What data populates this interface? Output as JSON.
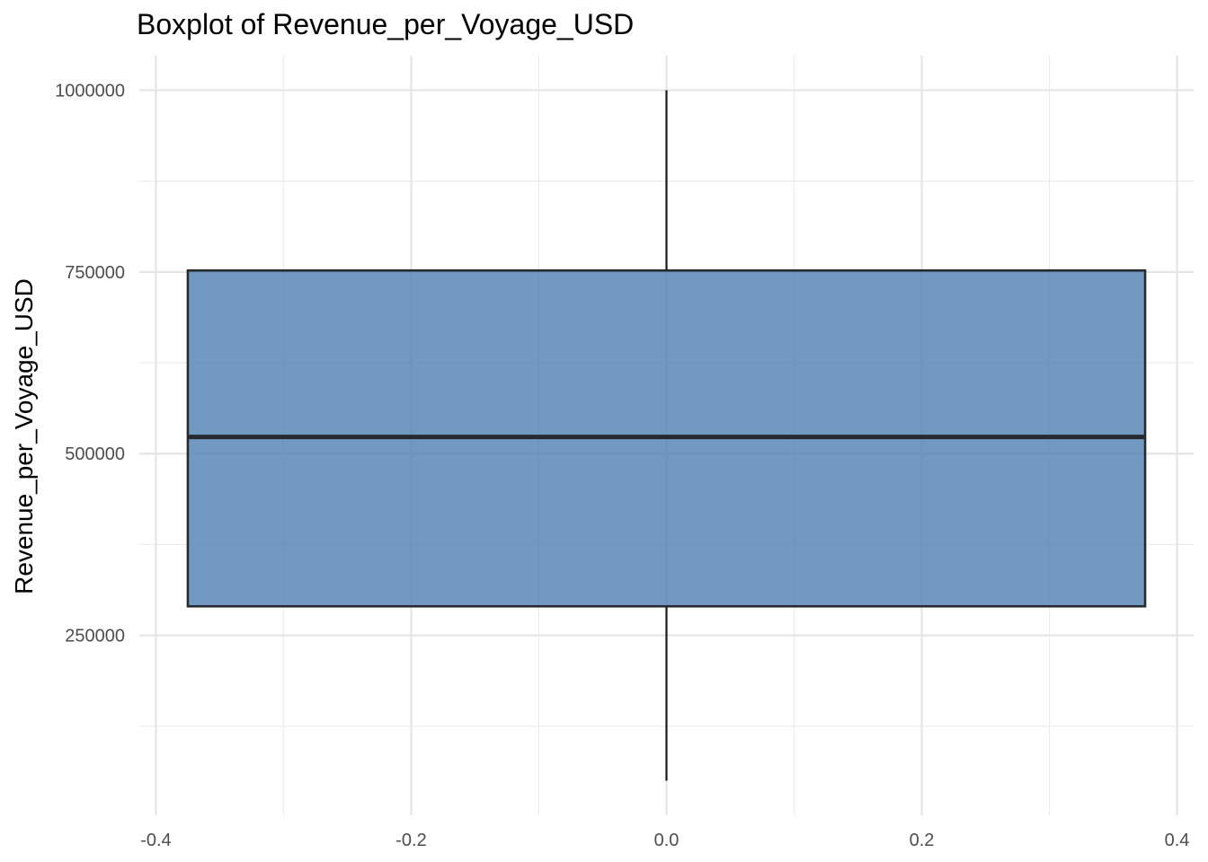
{
  "chart_data": {
    "type": "box",
    "title": "Boxplot of Revenue_per_Voyage_USD",
    "xlabel": "",
    "ylabel": "Revenue_per_Voyage_USD",
    "box": {
      "x_center": 0.0,
      "x_halfwidth": 0.375,
      "min": 50000,
      "q1": 290000,
      "median": 523000,
      "q3": 752000,
      "max": 1000000
    },
    "x_ticks": [
      -0.4,
      -0.2,
      0.0,
      0.2,
      0.4
    ],
    "x_tick_labels": [
      "-0.4",
      "-0.2",
      "0.0",
      "0.2",
      "0.4"
    ],
    "x_minor_ticks": [
      -0.3,
      -0.1,
      0.1,
      0.3
    ],
    "y_ticks": [
      250000,
      500000,
      750000,
      1000000
    ],
    "y_tick_labels": [
      "250000",
      "500000",
      "750000",
      "1000000"
    ],
    "y_minor_ticks": [
      125000,
      375000,
      625000,
      875000
    ],
    "xlim": [
      -0.413,
      0.413
    ],
    "ylim": [
      2500,
      1047500
    ],
    "grid": true,
    "legend": "none",
    "colors": {
      "box_fill": "#4F7FB3",
      "box_stroke": "#262a2e",
      "whisker": "#1a1a1a",
      "grid": "#e5e5e5"
    }
  }
}
